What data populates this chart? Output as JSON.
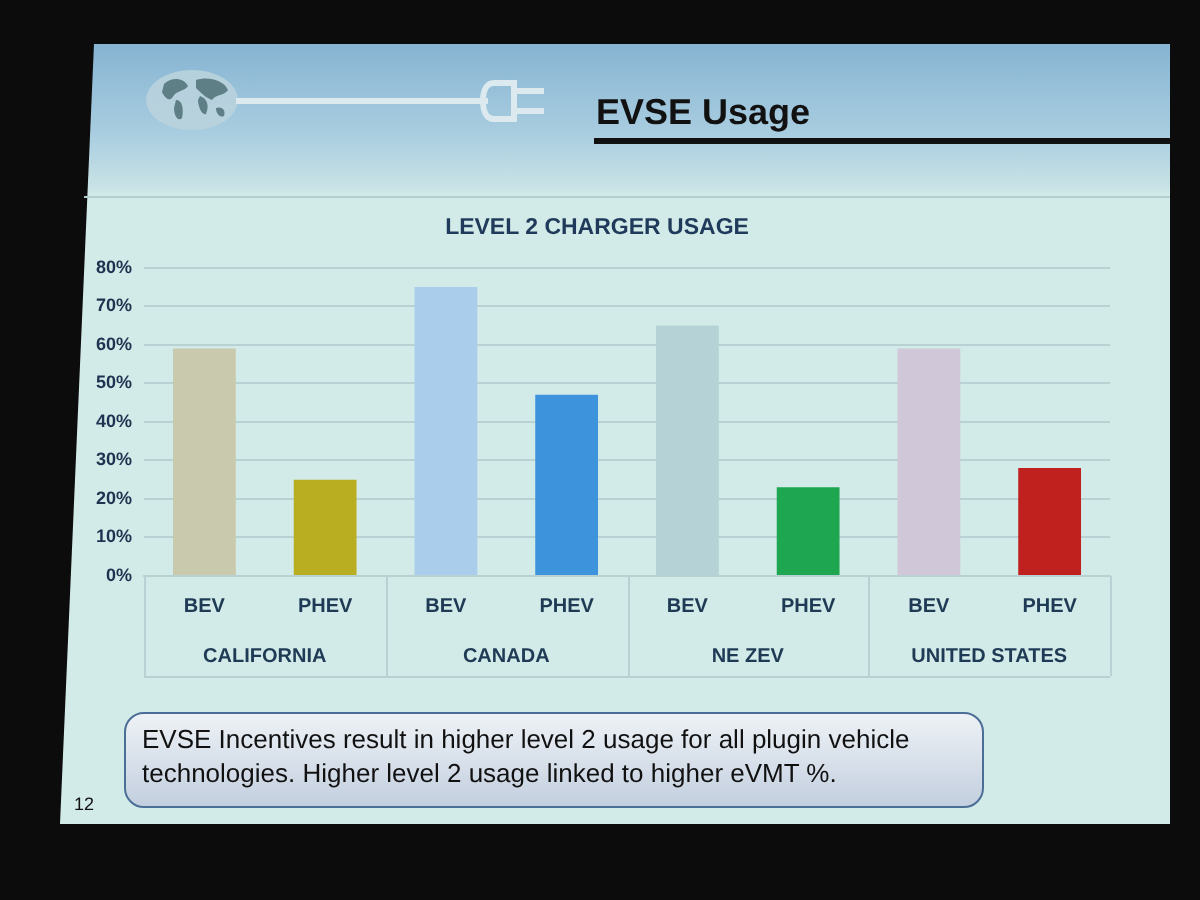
{
  "chart_data": {
    "type": "bar",
    "title": "EVSE Usage",
    "subtitle": "LEVEL 2 CHARGER USAGE",
    "categories": [
      "CALIFORNIA",
      "CANADA",
      "NE ZEV",
      "UNITED STATES"
    ],
    "series": [
      {
        "name": "BEV",
        "colors": [
          "#c9c9ad",
          "#a9cdea",
          "#b5d3d7",
          "#d0c8d8"
        ],
        "values": [
          59,
          75,
          65,
          59
        ]
      },
      {
        "name": "PHEV",
        "colors": [
          "#b9ad22",
          "#3d93dc",
          "#1ea651",
          "#c0201e"
        ],
        "values": [
          25,
          47,
          23,
          28
        ]
      }
    ],
    "ylim": [
      0,
      80
    ],
    "yticks": [
      {
        "value": 0,
        "label": "0%"
      },
      {
        "value": 10,
        "label": "10%"
      },
      {
        "value": 20,
        "label": "20%"
      },
      {
        "value": 30,
        "label": "30%"
      },
      {
        "value": 40,
        "label": "40%"
      },
      {
        "value": 50,
        "label": "50%"
      },
      {
        "value": 60,
        "label": "60%"
      },
      {
        "value": 70,
        "label": "70%"
      },
      {
        "value": 80,
        "label": "80%"
      }
    ],
    "grid": "y",
    "annotations": [
      "EVSE Incentives result in higher level 2 usage for all plugin vehicle technologies. Higher level 2 usage linked to higher eVMT %.",
      "12"
    ]
  }
}
